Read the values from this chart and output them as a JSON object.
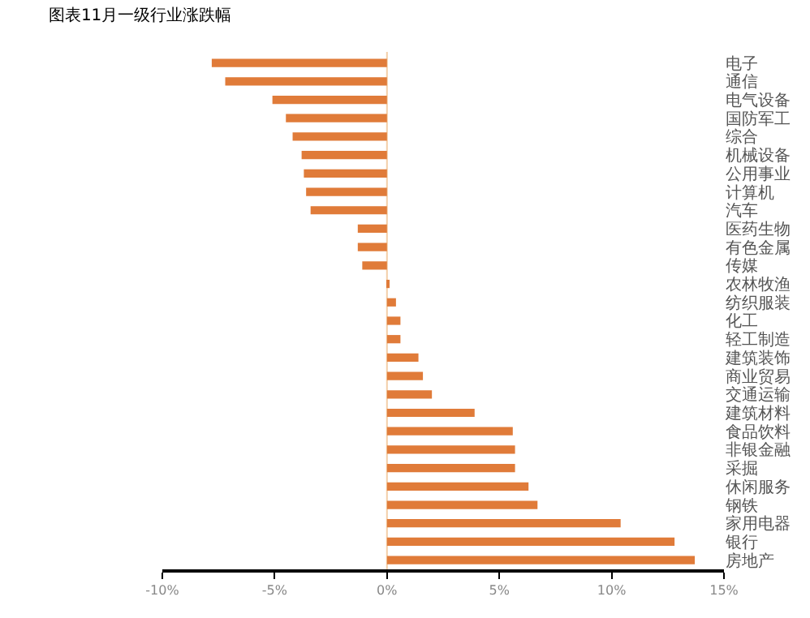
{
  "chart_data": {
    "type": "bar",
    "orientation": "horizontal",
    "title": "图表11月一级行业涨跌幅",
    "categories": [
      "电子",
      "通信",
      "电气设备",
      "国防军工",
      "综合",
      "机械设备",
      "公用事业",
      "计算机",
      "汽车",
      "医药生物",
      "有色金属",
      "传媒",
      "农林牧渔",
      "纺织服装",
      "化工",
      "轻工制造",
      "建筑装饰",
      "商业贸易",
      "交通运输",
      "建筑材料",
      "食品饮料",
      "非银金融",
      "采掘",
      "休闲服务",
      "钢铁",
      "家用电器",
      "银行",
      "房地产"
    ],
    "values": [
      -7.8,
      -7.2,
      -5.1,
      -4.5,
      -4.2,
      -3.8,
      -3.7,
      -3.6,
      -3.4,
      -1.3,
      -1.3,
      -1.1,
      0.1,
      0.4,
      0.6,
      0.6,
      1.4,
      1.6,
      2.0,
      3.9,
      5.6,
      5.7,
      5.7,
      6.3,
      6.7,
      10.4,
      12.8,
      13.7
    ],
    "color": "#e07b39",
    "xlim": [
      -10,
      15
    ],
    "xticks": [
      {
        "value": -10,
        "label": "-10%"
      },
      {
        "value": -5,
        "label": "-5%"
      },
      {
        "value": 0,
        "label": "0%"
      },
      {
        "value": 5,
        "label": "5%"
      },
      {
        "value": 10,
        "label": "10%"
      },
      {
        "value": 15,
        "label": "15%"
      }
    ],
    "ref_lines": [
      {
        "axis": "x",
        "value": 0,
        "color": "#f3cfa8"
      }
    ],
    "grid": false,
    "legend": false
  }
}
